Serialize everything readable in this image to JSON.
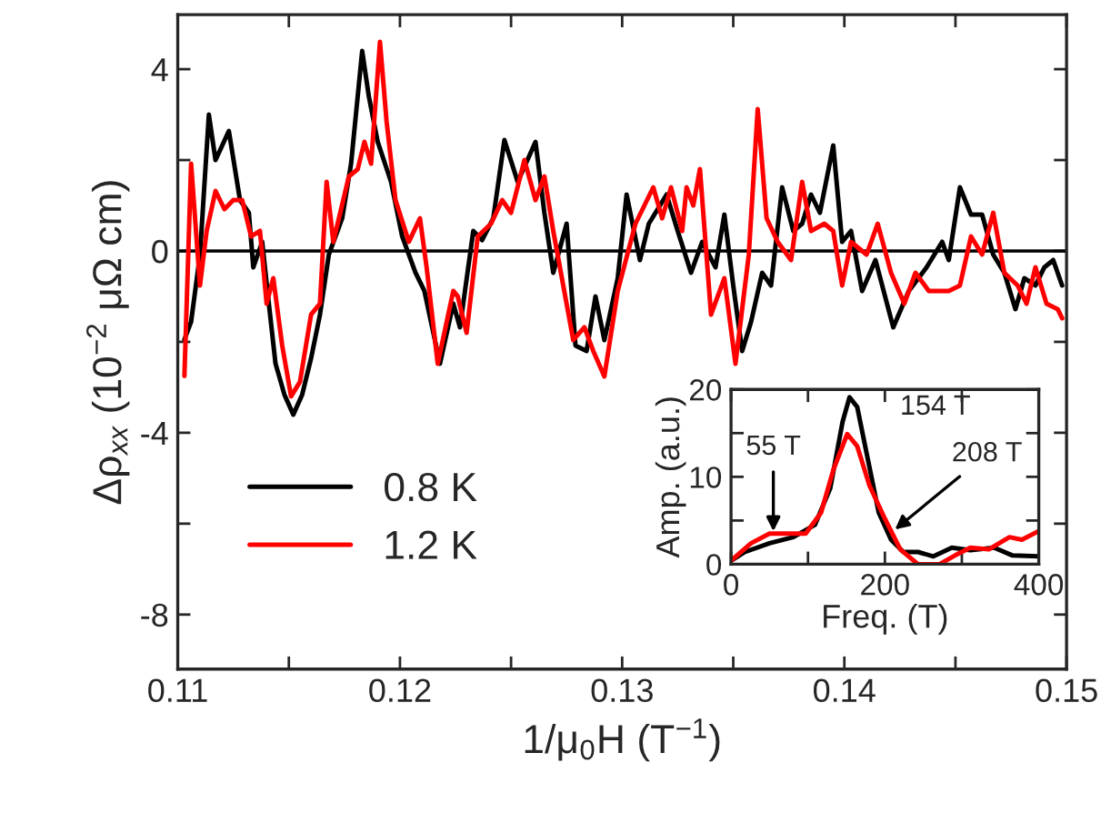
{
  "chart_data": [
    {
      "type": "line",
      "xlabel": "1/μ$_{0}$H (T$^{−1}$)",
      "ylabel": "Δρ$_{xx}$ (10$^{−2}$ μΩ cm)",
      "xlim": [
        0.11,
        0.15
      ],
      "ylim": [
        -9.2,
        5.2
      ],
      "xticks": [
        0.11,
        {
          "value": 0.115,
          "label": null
        },
        0.12,
        {
          "value": 0.125,
          "label": null
        },
        0.13,
        {
          "value": 0.135,
          "label": null
        },
        0.14,
        {
          "value": 0.145,
          "label": null
        },
        0.15
      ],
      "yticks": [
        -8,
        {
          "value": -6,
          "label": null
        },
        -4,
        {
          "value": -2,
          "label": null
        },
        0,
        {
          "value": 2,
          "label": null
        },
        4
      ],
      "legend": "bottom left",
      "ref_lines": [
        {
          "axis": "y",
          "value": 0,
          "label": null,
          "color": "#000000"
        }
      ],
      "series": [
        {
          "name": "0.8 K",
          "color": "#000000",
          "x": [
            0.1103,
            0.1106,
            0.111,
            0.1114,
            0.1117,
            0.1123,
            0.1128,
            0.1132,
            0.1134,
            0.1138,
            0.1141,
            0.1144,
            0.1148,
            0.1152,
            0.1156,
            0.116,
            0.1164,
            0.1168,
            0.1174,
            0.1178,
            0.1183,
            0.1186,
            0.119,
            0.1196,
            0.1201,
            0.1207,
            0.1211,
            0.1218,
            0.1224,
            0.1227,
            0.1233,
            0.1237,
            0.1242,
            0.1247,
            0.1253,
            0.1261,
            0.1265,
            0.1269,
            0.1275,
            0.1279,
            0.1284,
            0.1288,
            0.1292,
            0.1298,
            0.1302,
            0.1308,
            0.1312,
            0.132,
            0.1325,
            0.1331,
            0.1336,
            0.1342,
            0.1346,
            0.135,
            0.1354,
            0.1358,
            0.1363,
            0.1367,
            0.1372,
            0.1377,
            0.1381,
            0.1385,
            0.1389,
            0.1395,
            0.1399,
            0.1403,
            0.1408,
            0.1414,
            0.1422,
            0.1429,
            0.1437,
            0.1444,
            0.1447,
            0.1452,
            0.1457,
            0.1462,
            0.1467,
            0.1472,
            0.1477,
            0.1481,
            0.1486,
            0.149,
            0.1494,
            0.1498
          ],
          "values": [
            -1.95,
            -1.56,
            -0.08,
            3.0,
            2.0,
            2.64,
            1.12,
            0.84,
            -0.36,
            0.2,
            -1.16,
            -2.48,
            -3.16,
            -3.6,
            -3.16,
            -2.36,
            -1.4,
            -0.08,
            0.72,
            1.92,
            4.4,
            3.4,
            2.4,
            1.52,
            0.32,
            -0.48,
            -0.88,
            -2.48,
            -1.16,
            -1.68,
            0.44,
            0.24,
            0.72,
            2.44,
            1.52,
            2.4,
            0.84,
            -0.48,
            0.6,
            -2.08,
            -2.2,
            -1.0,
            -1.96,
            -0.6,
            1.24,
            -0.2,
            0.6,
            1.24,
            0.44,
            -0.48,
            0.2,
            -0.36,
            0.8,
            -0.76,
            -2.2,
            -1.56,
            -0.48,
            -0.76,
            1.4,
            0.44,
            0.6,
            1.24,
            0.84,
            2.32,
            0.2,
            0.44,
            -0.88,
            -0.2,
            -1.68,
            -0.88,
            -0.36,
            0.2,
            -0.2,
            1.4,
            0.8,
            0.8,
            -0.08,
            -0.48,
            -1.28,
            -0.6,
            -0.76,
            -0.36,
            -0.2,
            -0.76
          ]
        },
        {
          "name": "1.2 K",
          "color": "#ff0000",
          "x": [
            0.1103,
            0.1106,
            0.111,
            0.1113,
            0.1117,
            0.1121,
            0.1125,
            0.1129,
            0.1133,
            0.1137,
            0.114,
            0.1143,
            0.1147,
            0.1151,
            0.1155,
            0.116,
            0.1164,
            0.1167,
            0.117,
            0.1177,
            0.1181,
            0.1184,
            0.1187,
            0.1191,
            0.1194,
            0.1198,
            0.1204,
            0.1209,
            0.1212,
            0.1217,
            0.1224,
            0.1226,
            0.123,
            0.1235,
            0.1241,
            0.1246,
            0.125,
            0.1256,
            0.1261,
            0.1265,
            0.1269,
            0.1278,
            0.1283,
            0.1287,
            0.1292,
            0.1298,
            0.1306,
            0.1314,
            0.1318,
            0.1322,
            0.1327,
            0.1329,
            0.1332,
            0.1335,
            0.134,
            0.1346,
            0.1351,
            0.1357,
            0.1361,
            0.1365,
            0.137,
            0.1376,
            0.1381,
            0.1385,
            0.1391,
            0.1395,
            0.1399,
            0.1403,
            0.141,
            0.1415,
            0.1421,
            0.1427,
            0.1432,
            0.1438,
            0.1447,
            0.1452,
            0.1457,
            0.1462,
            0.1467,
            0.1472,
            0.1478,
            0.1482,
            0.1486,
            0.1491,
            0.1496,
            0.1498
          ],
          "values": [
            -2.75,
            1.92,
            -0.76,
            0.44,
            1.32,
            0.92,
            1.12,
            1.12,
            0.32,
            0.44,
            -1.16,
            -0.6,
            -2.08,
            -3.2,
            -2.88,
            -1.4,
            -1.16,
            1.52,
            0.2,
            1.64,
            1.8,
            2.4,
            1.92,
            4.6,
            2.84,
            1.12,
            0.2,
            0.72,
            -0.36,
            -2.48,
            -0.88,
            -1.0,
            -1.8,
            0.32,
            0.6,
            1.12,
            0.84,
            2.0,
            1.12,
            1.64,
            0.44,
            -1.96,
            -1.68,
            -2.2,
            -2.76,
            -0.88,
            0.6,
            1.4,
            0.72,
            1.4,
            0.44,
            1.4,
            1.0,
            1.8,
            -1.4,
            -0.6,
            -2.48,
            -0.08,
            3.12,
            0.72,
            0.2,
            -0.2,
            1.52,
            0.44,
            0.6,
            0.44,
            -0.76,
            0.2,
            -0.08,
            0.6,
            -0.48,
            -1.16,
            -0.48,
            -0.88,
            -0.88,
            -0.76,
            0.32,
            -0.08,
            0.84,
            -0.48,
            -0.76,
            -1.16,
            -0.36,
            -1.16,
            -1.28,
            -1.48
          ]
        }
      ]
    },
    {
      "type": "line",
      "xlabel": "Freq. (T)",
      "ylabel": "Amp. (a.u.)",
      "xlim": [
        0,
        400
      ],
      "ylim": [
        0,
        20
      ],
      "xticks": [
        0,
        {
          "value": 100,
          "label": null
        },
        200,
        {
          "value": 300,
          "label": null
        },
        400
      ],
      "yticks": [
        0,
        {
          "value": 5,
          "label": null
        },
        10,
        {
          "value": 15,
          "label": null
        },
        20
      ],
      "annotations": [
        {
          "text": "55 T",
          "x": 55,
          "y": 3.2
        },
        {
          "text": "154 T",
          "x": 154,
          "y": 19.1
        },
        {
          "text": "208 T",
          "x": 208,
          "y": 3.6
        }
      ],
      "series": [
        {
          "color": "#000000",
          "x": [
            0,
            18,
            50,
            81,
            109,
            129,
            145,
            154,
            164,
            176,
            192,
            208,
            224,
            243,
            263,
            287,
            311,
            342,
            366,
            400
          ],
          "values": [
            0.4,
            1.4,
            2.4,
            3.1,
            4.5,
            8.7,
            16.3,
            19.1,
            18,
            12.8,
            5.9,
            2.8,
            1.4,
            1.4,
            0.9,
            1.9,
            1.6,
            1.9,
            1.0,
            0.9
          ]
        },
        {
          "color": "#ff0000",
          "x": [
            0,
            26,
            50,
            74,
            97,
            117,
            133,
            151,
            164,
            180,
            200,
            220,
            243,
            271,
            291,
            311,
            335,
            362,
            378,
            400
          ],
          "values": [
            0.4,
            2.4,
            3.5,
            3.5,
            3.5,
            5.9,
            10.8,
            14.9,
            13.5,
            9.0,
            5.2,
            1.7,
            0,
            0,
            1.0,
            1.9,
            1.7,
            3.1,
            2.8,
            3.8
          ]
        }
      ]
    }
  ]
}
